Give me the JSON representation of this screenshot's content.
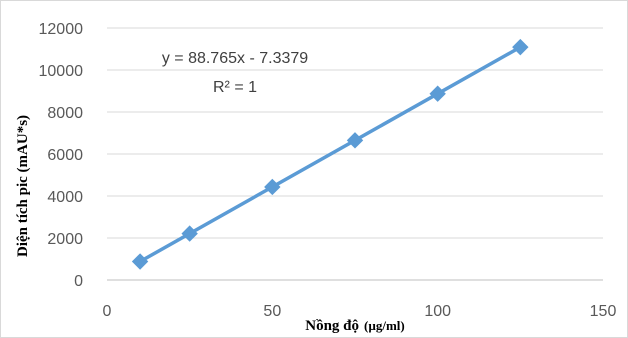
{
  "chart_data": {
    "type": "scatter",
    "title": "",
    "xlabel": "Nồng độ",
    "xlabel_unit": "(µg/ml)",
    "ylabel": "Diện tích pic (mAU*s)",
    "xlim": [
      0,
      150
    ],
    "ylim": [
      0,
      12000
    ],
    "x_ticks": [
      "0",
      "50",
      "100",
      "150"
    ],
    "y_ticks": [
      "0",
      "2000",
      "4000",
      "6000",
      "8000",
      "10000",
      "12000"
    ],
    "grid": "horizontal",
    "legend": "none",
    "series": [
      {
        "x": [
          10,
          25,
          50,
          75,
          100,
          125
        ],
        "y": [
          880,
          2210,
          4430,
          6650,
          8870,
          11090
        ],
        "marker": "diamond",
        "color": "#5b9bd5"
      }
    ],
    "trendline": {
      "type": "linear",
      "slope": 88.765,
      "intercept": -7.3379,
      "color": "#5b9bd5"
    },
    "annotations": {
      "equation": "y = 88.765x - 7.3379",
      "r_squared": "R² = 1"
    },
    "colors": {
      "grid": "#d9d9d9",
      "axis": "#bfbfbf"
    }
  }
}
